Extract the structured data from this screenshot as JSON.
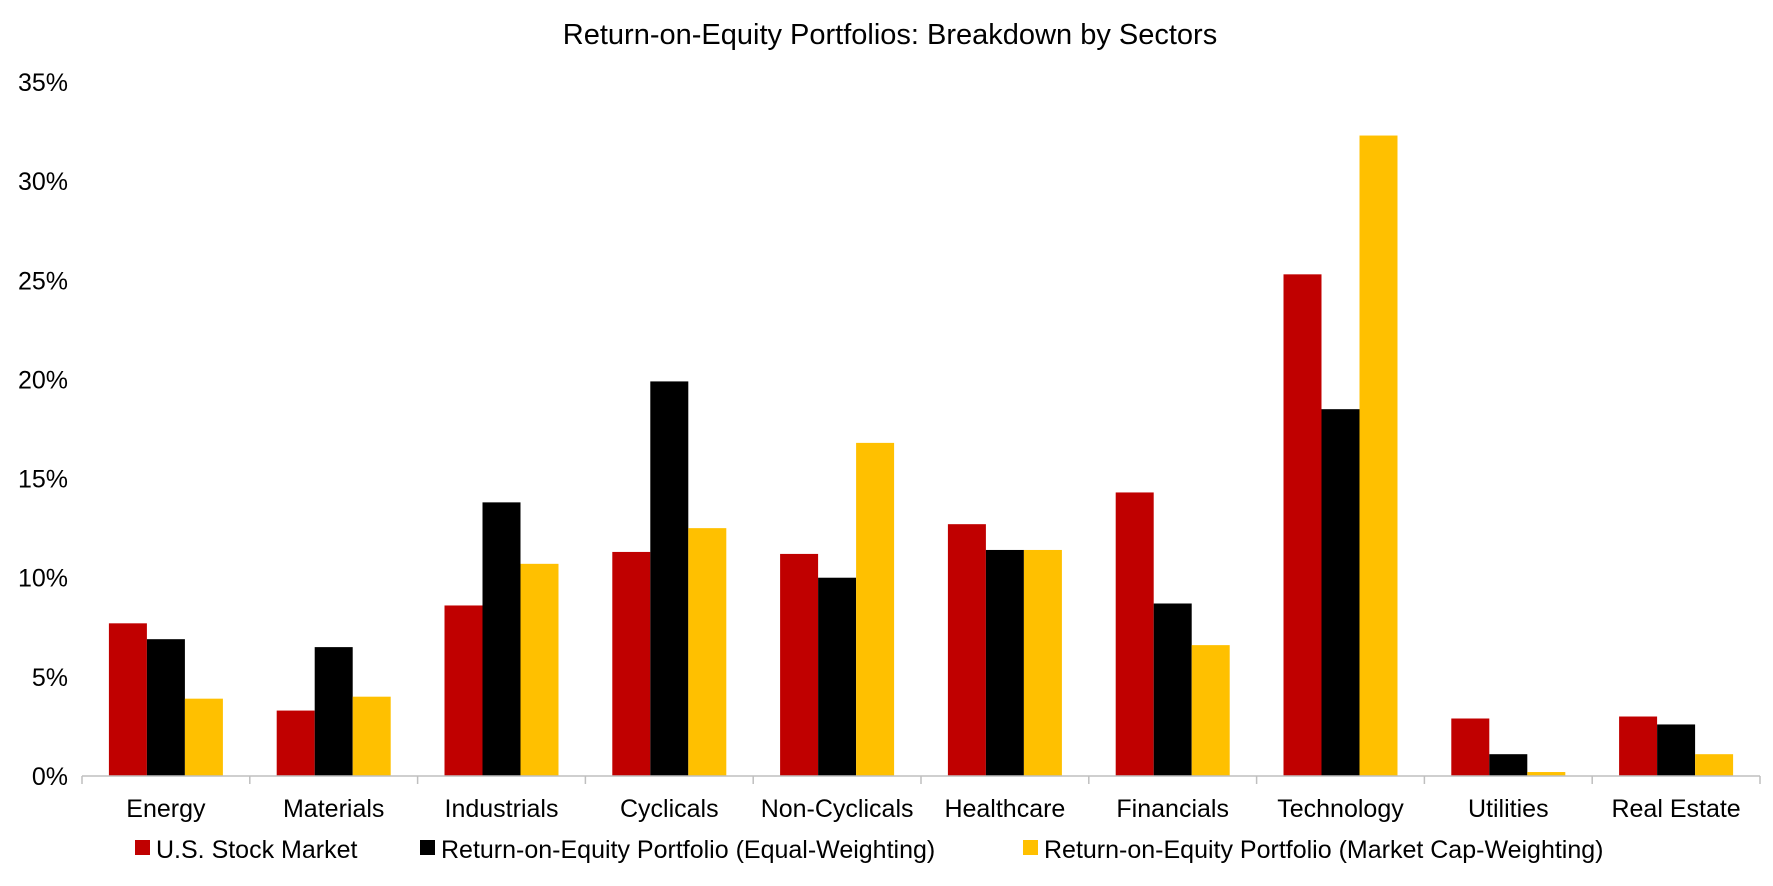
{
  "chart_data": {
    "type": "bar",
    "title": "Return-on-Equity Portfolios: Breakdown by Sectors",
    "xlabel": "",
    "ylabel": "",
    "ylim": [
      0,
      35
    ],
    "yticks": [
      "0%",
      "5%",
      "10%",
      "15%",
      "20%",
      "25%",
      "30%",
      "35%"
    ],
    "categories": [
      "Energy",
      "Materials",
      "Industrials",
      "Cyclicals",
      "Non-Cyclicals",
      "Healthcare",
      "Financials",
      "Technology",
      "Utilities",
      "Real Estate"
    ],
    "series": [
      {
        "name": "U.S. Stock Market",
        "color": "#C00000",
        "values": [
          7.7,
          3.3,
          8.6,
          11.3,
          11.2,
          12.7,
          14.3,
          25.3,
          2.9,
          3.0
        ]
      },
      {
        "name": "Return-on-Equity Portfolio (Equal-Weighting)",
        "color": "#000000",
        "values": [
          6.9,
          6.5,
          13.8,
          19.9,
          10.0,
          11.4,
          8.7,
          18.5,
          1.1,
          2.6
        ]
      },
      {
        "name": "Return-on-Equity Portfolio (Market Cap-Weighting)",
        "color": "#FFC000",
        "values": [
          3.9,
          4.0,
          10.7,
          12.5,
          16.8,
          11.4,
          6.6,
          32.3,
          0.2,
          1.1
        ]
      }
    ],
    "grid": false,
    "legend_position": "bottom"
  }
}
